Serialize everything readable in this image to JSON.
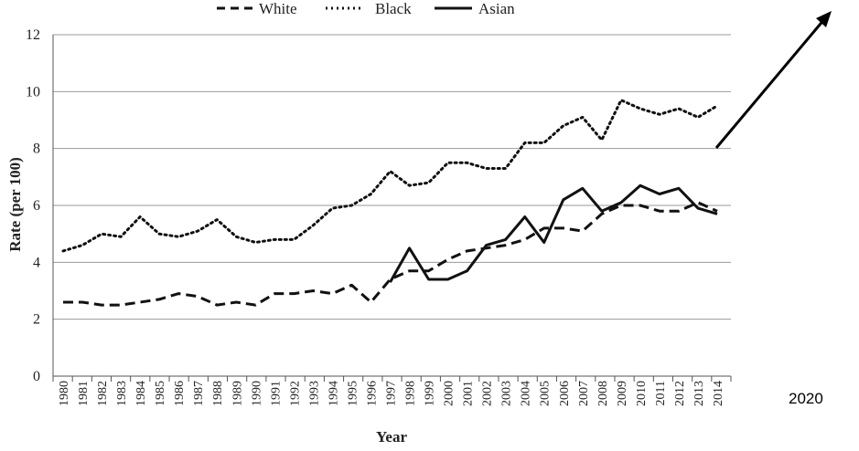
{
  "chart_data": {
    "type": "line",
    "title": "",
    "xlabel": "Year",
    "ylabel": "Rate (per 100)",
    "ylim": [
      0,
      12
    ],
    "yticks": [
      "0",
      "2",
      "4",
      "6",
      "8",
      "10",
      "12"
    ],
    "categories": [
      "1980",
      "1981",
      "1982",
      "1983",
      "1984",
      "1985",
      "1986",
      "1987",
      "1988",
      "1989",
      "1990",
      "1991",
      "1992",
      "1993",
      "1994",
      "1995",
      "1996",
      "1997",
      "1998",
      "1999",
      "2000",
      "2001",
      "2002",
      "2003",
      "2004",
      "2005",
      "2006",
      "2007",
      "2008",
      "2009",
      "2010",
      "2011",
      "2012",
      "2013",
      "2014"
    ],
    "grid": true,
    "legend_position": "top",
    "series": [
      {
        "name": "White",
        "style": "dashed",
        "color": "#111111",
        "values": [
          2.6,
          2.6,
          2.5,
          2.5,
          2.6,
          2.7,
          2.9,
          2.8,
          2.5,
          2.6,
          2.5,
          2.9,
          2.9,
          3.0,
          2.9,
          3.2,
          2.6,
          3.4,
          3.7,
          3.7,
          4.1,
          4.4,
          4.5,
          4.6,
          4.8,
          5.2,
          5.2,
          5.1,
          5.7,
          6.0,
          6.0,
          5.8,
          5.8,
          6.1,
          5.8
        ]
      },
      {
        "name": "Black",
        "style": "dotted",
        "color": "#111111",
        "values": [
          4.4,
          4.6,
          5.0,
          4.9,
          5.6,
          5.0,
          4.9,
          5.1,
          5.5,
          4.9,
          4.7,
          4.8,
          4.8,
          5.3,
          5.9,
          6.0,
          6.4,
          7.2,
          6.7,
          6.8,
          7.5,
          7.5,
          7.3,
          7.3,
          8.2,
          8.2,
          8.8,
          9.1,
          8.3,
          9.7,
          9.4,
          9.2,
          9.4,
          9.1,
          9.5
        ]
      },
      {
        "name": "Asian",
        "style": "solid",
        "color": "#111111",
        "values": [
          null,
          null,
          null,
          null,
          null,
          null,
          null,
          null,
          null,
          null,
          null,
          null,
          null,
          null,
          null,
          null,
          null,
          3.3,
          4.5,
          3.4,
          3.4,
          3.7,
          4.6,
          4.8,
          5.6,
          4.7,
          6.2,
          6.6,
          5.8,
          6.1,
          6.7,
          6.4,
          6.6,
          5.9,
          5.7
        ]
      }
    ],
    "annotation": {
      "text": "2020",
      "arrow": "up-right"
    }
  }
}
